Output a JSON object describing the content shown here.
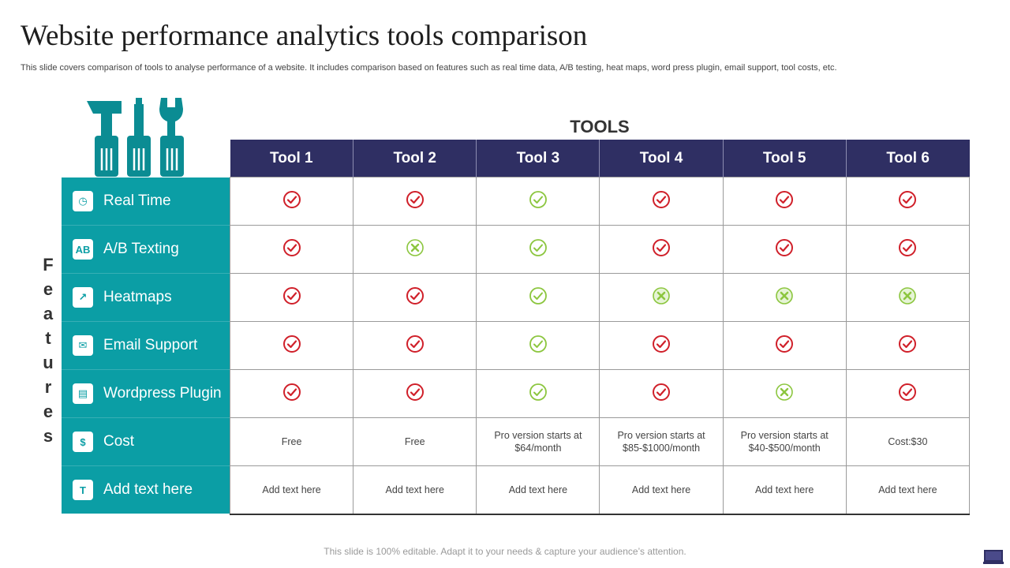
{
  "title": "Website performance analytics tools comparison",
  "subtitle": "This slide covers comparison of tools to analyse performance of a website. It includes comparison based on features such as real time data, A/B testing, heat maps, word press plugin, email support, tool costs, etc.",
  "tools_heading": "TOOLS",
  "features_label": [
    "F",
    "e",
    "a",
    "t",
    "u",
    "r",
    "e",
    "s"
  ],
  "tools": [
    "Tool 1",
    "Tool 2",
    "Tool 3",
    "Tool 4",
    "Tool 5",
    "Tool 6"
  ],
  "features": [
    {
      "label": "Real Time",
      "icon": "clock-icon",
      "glyph": "◷"
    },
    {
      "label": "A/B Texting",
      "icon": "ab-icon",
      "glyph": "AB"
    },
    {
      "label": "Heatmaps",
      "icon": "chart-icon",
      "glyph": "↗"
    },
    {
      "label": "Email Support",
      "icon": "email-icon",
      "glyph": "✉"
    },
    {
      "label": "Wordpress Plugin",
      "icon": "plugin-icon",
      "glyph": "▤"
    },
    {
      "label": "Cost",
      "icon": "dollar-icon",
      "glyph": "$"
    },
    {
      "label": "Add text here",
      "icon": "text-icon",
      "glyph": "T"
    }
  ],
  "marks": [
    [
      "red-check",
      "red-check",
      "green-check",
      "red-check",
      "red-check",
      "red-check"
    ],
    [
      "red-check",
      "green-cross",
      "green-check",
      "red-check",
      "red-check",
      "red-check"
    ],
    [
      "red-check",
      "red-check",
      "green-check",
      "green-cross-filled",
      "green-cross-filled",
      "green-cross-filled"
    ],
    [
      "red-check",
      "red-check",
      "green-check",
      "red-check",
      "red-check",
      "red-check"
    ],
    [
      "red-check",
      "red-check",
      "green-check",
      "red-check",
      "green-cross",
      "red-check"
    ]
  ],
  "cost_row": [
    "Free",
    "Free",
    "Pro version  starts at $64/month",
    "Pro version  starts at $85-$1000/month",
    "Pro version  starts at $40-$500/month",
    "Cost:$30"
  ],
  "text_row": [
    "Add text here",
    "Add text here",
    "Add text here",
    "Add text here",
    "Add text here",
    "Add text here"
  ],
  "footer": "This slide is 100% editable. Adapt it to your needs & capture your audience’s attention.",
  "colors": {
    "teal": "#0b9ea5",
    "navy": "#2f2f63",
    "red": "#d0202a",
    "green": "#8cc63f"
  }
}
